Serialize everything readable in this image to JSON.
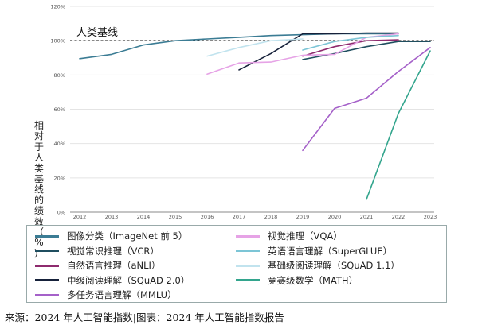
{
  "chart_data": {
    "type": "line",
    "ylabel": "相对于人类基线的绩效（%）",
    "ylim": [
      0,
      120
    ],
    "yticks": [
      "0%",
      "20%",
      "40%",
      "60%",
      "80%",
      "100%",
      "120%"
    ],
    "xticks": [
      "2012",
      "2013",
      "2014",
      "2015",
      "2016",
      "2017",
      "2018",
      "2019",
      "2020",
      "2021",
      "2022",
      "2023"
    ],
    "baseline": {
      "value": 100,
      "label": "人类基线"
    },
    "series": [
      {
        "name": "图像分类（ImageNet 前 5）",
        "color": "#3b7c94",
        "x": [
          2012,
          2013,
          2014,
          2015,
          2016,
          2017,
          2018,
          2019,
          2020,
          2021,
          2022
        ],
        "y": [
          89.5,
          92,
          97.5,
          100,
          101,
          102,
          103,
          103.5,
          104,
          104,
          104
        ]
      },
      {
        "name": "视觉常识推理（VCR）",
        "color": "#1f4e5f",
        "x": [
          2019,
          2020,
          2021,
          2022,
          2023
        ],
        "y": [
          89,
          92.5,
          96.5,
          99.5,
          99.5
        ]
      },
      {
        "name": "自然语言推理（aNLI）",
        "color": "#8e2b6e",
        "x": [
          2019,
          2020,
          2021,
          2022
        ],
        "y": [
          91,
          96.5,
          100,
          100.5
        ]
      },
      {
        "name": "中级阅读理解（SQuAD 2.0）",
        "color": "#16213a",
        "x": [
          2017,
          2018,
          2019,
          2020,
          2021,
          2022
        ],
        "y": [
          83,
          92.5,
          104,
          104,
          104.5,
          104.5
        ]
      },
      {
        "name": "多任务语言理解（MMLU）",
        "color": "#a561c9",
        "x": [
          2019,
          2020,
          2021,
          2022,
          2023
        ],
        "y": [
          36,
          60.5,
          66.5,
          82,
          96
        ]
      },
      {
        "name": "视觉推理（VQA）",
        "color": "#e6a3e6",
        "x": [
          2016,
          2017,
          2018,
          2019,
          2020,
          2021,
          2022
        ],
        "y": [
          80.5,
          87,
          87.5,
          91.5,
          92,
          102,
          104
        ]
      },
      {
        "name": "英语语言理解（SuperGLUE）",
        "color": "#7cc5d6",
        "x": [
          2019,
          2020,
          2021,
          2022
        ],
        "y": [
          94.5,
          99.5,
          102,
          103
        ]
      },
      {
        "name": "基础级阅读理解（SQuAD 1.1）",
        "color": "#c1e3ee",
        "x": [
          2016,
          2017,
          2018,
          2019
        ],
        "y": [
          91,
          96,
          100,
          101
        ]
      },
      {
        "name": "竞赛级数学（MATH）",
        "color": "#33a58d",
        "x": [
          2021,
          2022,
          2023
        ],
        "y": [
          7.5,
          57.5,
          94
        ]
      }
    ]
  },
  "legend_columns": [
    [
      "图像分类（ImageNet 前 5）",
      "视觉常识推理（VCR）",
      "自然语言推理（aNLI）",
      "中级阅读理解（SQuAD 2.0）",
      "多任务语言理解（MMLU）"
    ],
    [
      "视觉推理（VQA）",
      "英语语言理解（SuperGLUE）",
      "基础级阅读理解（SQuAD 1.1）",
      "竞赛级数学（MATH）"
    ]
  ],
  "source": "来源：2024 年人工智能指数|图表：2024 年人工智能指数报告"
}
